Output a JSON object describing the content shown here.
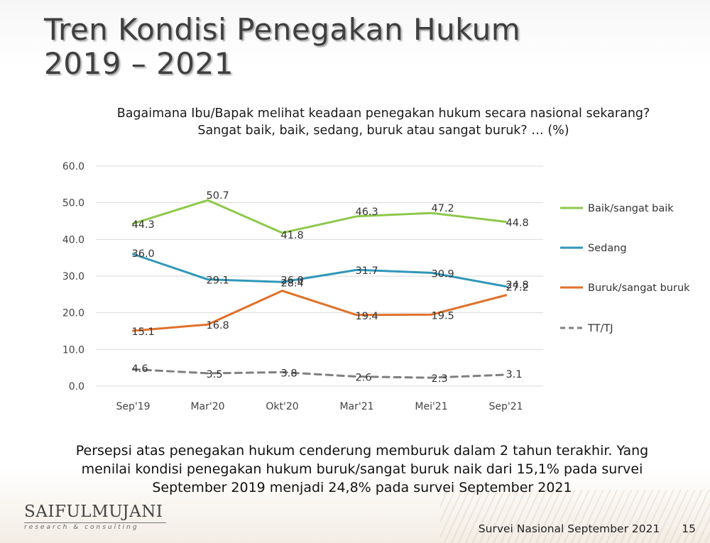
{
  "title": {
    "line1": "Tren Kondisi Penegakan Hukum",
    "line2": "2019 – 2021"
  },
  "question": {
    "line1": "Bagaimana Ibu/Bapak melihat keadaan penegakan hukum secara nasional sekarang?",
    "line2": "Sangat baik, baik, sedang, buruk atau sangat buruk? … (%)"
  },
  "chart_data": {
    "type": "line",
    "categories": [
      "Sep'19",
      "Mar'20",
      "Okt'20",
      "Mar'21",
      "Mei'21",
      "Sep'21"
    ],
    "ylim": [
      0,
      60
    ],
    "yticks": [
      "0.0",
      "10.0",
      "20.0",
      "30.0",
      "40.0",
      "50.0",
      "60.0"
    ],
    "grid": true,
    "legend_position": "right",
    "series": [
      {
        "name": "Baik/sangat baik",
        "color": "#8dc84b",
        "dashed": false,
        "values": [
          44.3,
          50.7,
          41.8,
          46.3,
          47.2,
          44.8
        ],
        "labels": [
          "44.3",
          "50.7",
          "41.8",
          "46.3",
          "47.2",
          "44.8"
        ]
      },
      {
        "name": "Sedang",
        "color": "#2f97b9",
        "dashed": false,
        "values": [
          36.0,
          29.1,
          28.4,
          31.7,
          30.9,
          27.2
        ],
        "labels": [
          "36.0",
          "29.1",
          "28.4",
          "31.7",
          "30.9",
          "27.2"
        ]
      },
      {
        "name": "Buruk/sangat buruk",
        "color": "#e0712a",
        "dashed": false,
        "values": [
          15.1,
          16.8,
          26.0,
          19.4,
          19.5,
          24.8
        ],
        "labels": [
          "15.1",
          "16.8",
          "26.0",
          "19.4",
          "19.5",
          "24.8"
        ]
      },
      {
        "name": "TT/TJ",
        "color": "#7f7f7f",
        "dashed": true,
        "values": [
          4.6,
          3.5,
          3.8,
          2.6,
          2.3,
          3.1
        ],
        "labels": [
          "4.6",
          "3.5",
          "3.8",
          "2.6",
          "2.3",
          "3.1"
        ]
      }
    ]
  },
  "note": "Persepsi atas penegakan hukum cenderung memburuk dalam 2 tahun terakhir. Yang menilai kondisi penegakan hukum buruk/sangat buruk naik dari 15,1% pada survei September 2019 menjadi 24,8% pada survei September 2021",
  "logo": {
    "name": "SAIFULMUJANI",
    "sub": "research & consulting"
  },
  "footer": {
    "survey": "Survei Nasional September 2021",
    "page": "15"
  }
}
